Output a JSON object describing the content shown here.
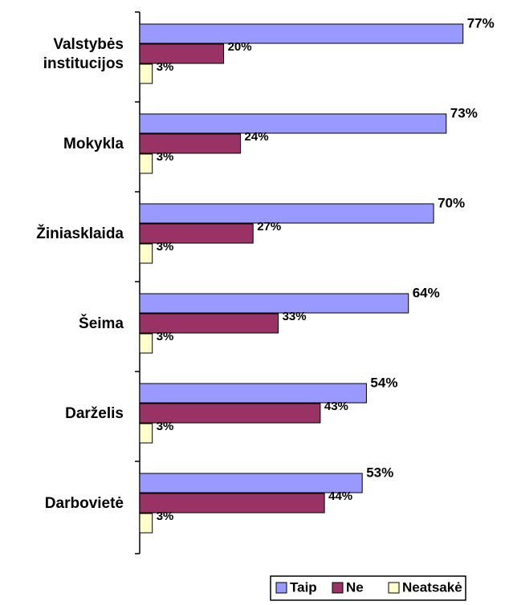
{
  "chart_data": {
    "type": "hbar",
    "categories": [
      "Valstybės institucijos",
      "Mokykla",
      "Žiniasklaida",
      "Šeima",
      "Darželis",
      "Darbovietė"
    ],
    "series": [
      {
        "name": "Taip",
        "color": "#9999ff",
        "values": [
          77,
          73,
          70,
          64,
          54,
          53
        ],
        "value_labels": [
          "77%",
          "73%",
          "70%",
          "64%",
          "54%",
          "53%"
        ]
      },
      {
        "name": "Ne",
        "color": "#993366",
        "values": [
          20,
          24,
          27,
          33,
          43,
          44
        ],
        "value_labels": [
          "20%",
          "24%",
          "27%",
          "33%",
          "43%",
          "44%"
        ]
      },
      {
        "name": "Neatsakė",
        "color": "#ffffcc",
        "values": [
          3,
          3,
          3,
          3,
          3,
          3
        ],
        "value_labels": [
          "3%",
          "3%",
          "3%",
          "3%",
          "3%",
          "3%"
        ]
      }
    ],
    "legend": "bottom-right"
  }
}
